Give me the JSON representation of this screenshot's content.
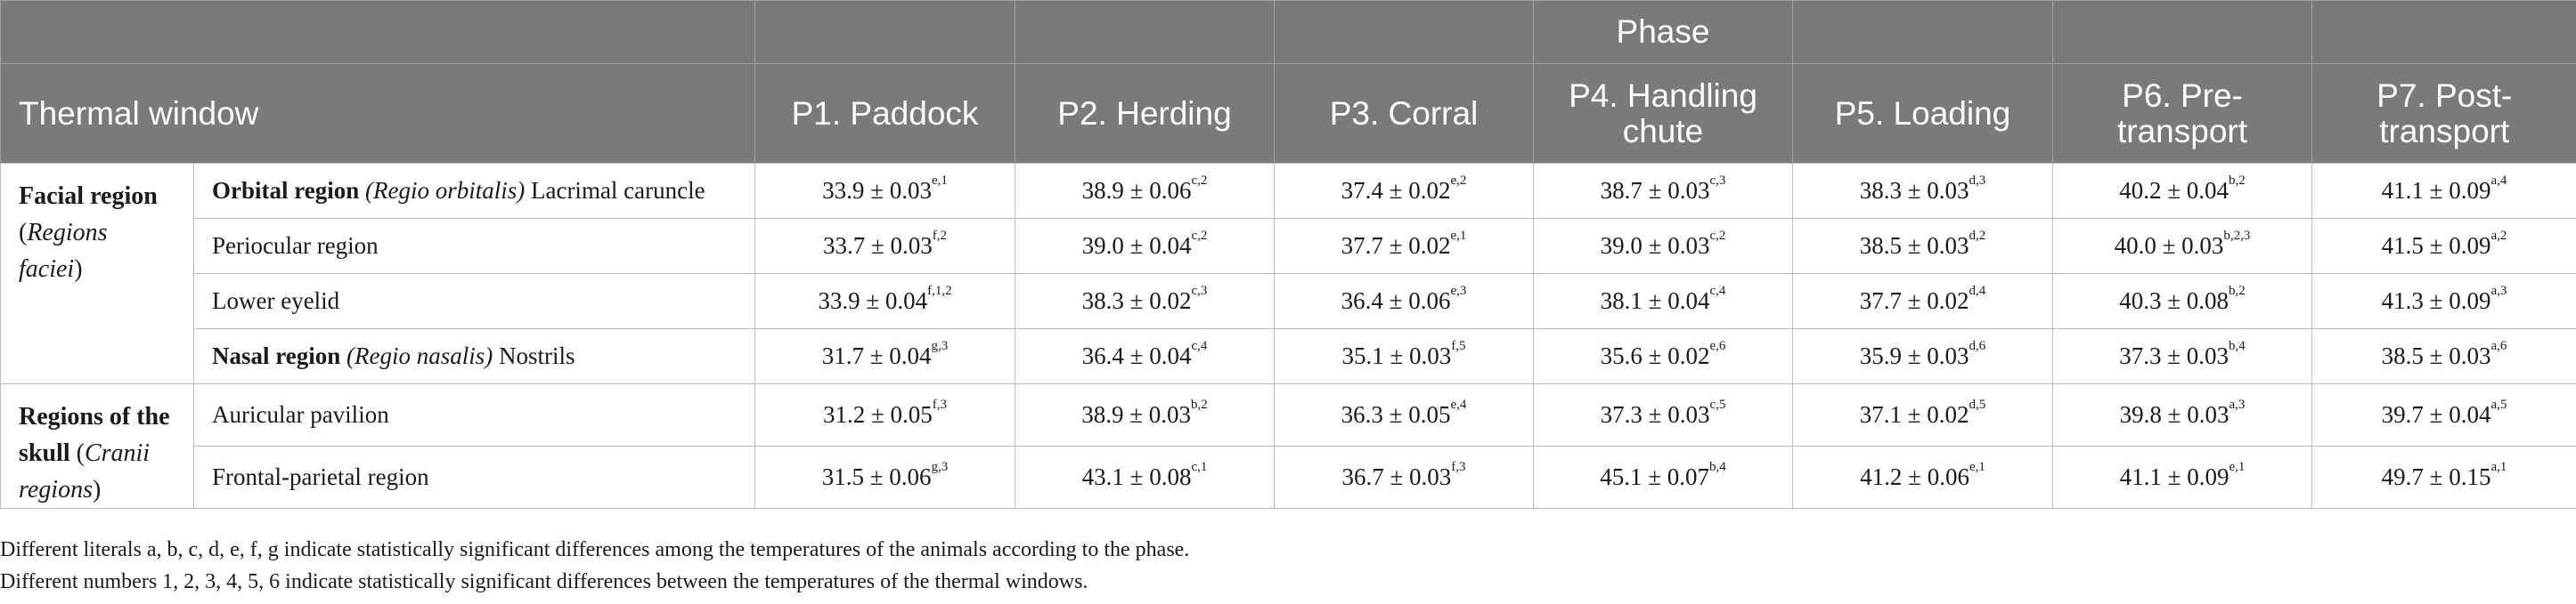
{
  "header": {
    "phase_label": "Phase",
    "thermal_window_label": "Thermal window",
    "phases": [
      "P1. Paddock",
      "P2. Herding",
      "P3. Corral",
      "P4. Handling chute",
      "P5. Loading",
      "P6. Pre-transport",
      "P7. Post-transport"
    ]
  },
  "groups": {
    "facial": {
      "bold": "Facial region",
      "italic": "Regions faciei"
    },
    "skull": {
      "bold": "Regions of the skull",
      "italic": "Cranii regions"
    }
  },
  "rows": [
    {
      "label_bold": "Orbital region",
      "label_italic": "(Regio orbitalis)",
      "label_plain": "Lacrimal caruncle",
      "cells": [
        [
          "33.9 ± 0.03",
          "e,1"
        ],
        [
          "38.9 ± 0.06",
          "c,2"
        ],
        [
          "37.4 ± 0.02",
          "e,2"
        ],
        [
          "38.7 ± 0.03",
          "c,3"
        ],
        [
          "38.3 ± 0.03",
          "d,3"
        ],
        [
          "40.2 ± 0.04",
          "b,2"
        ],
        [
          "41.1 ± 0.09",
          "a,4"
        ]
      ]
    },
    {
      "label_bold": "",
      "label_italic": "",
      "label_plain": "Periocular region",
      "cells": [
        [
          "33.7 ± 0.03",
          "f,2"
        ],
        [
          "39.0 ± 0.04",
          "c,2"
        ],
        [
          "37.7 ± 0.02",
          "e,1"
        ],
        [
          "39.0 ± 0.03",
          "c,2"
        ],
        [
          "38.5 ± 0.03",
          "d,2"
        ],
        [
          "40.0 ± 0.03",
          "b,2,3"
        ],
        [
          "41.5 ± 0.09",
          "a,2"
        ]
      ]
    },
    {
      "label_bold": "",
      "label_italic": "",
      "label_plain": "Lower eyelid",
      "cells": [
        [
          "33.9 ± 0.04",
          "f,1,2"
        ],
        [
          "38.3 ± 0.02",
          "c,3"
        ],
        [
          "36.4 ± 0.06",
          "e,3"
        ],
        [
          "38.1 ± 0.04",
          "c,4"
        ],
        [
          "37.7 ± 0.02",
          "d,4"
        ],
        [
          "40.3 ± 0.08",
          "b,2"
        ],
        [
          "41.3 ± 0.09",
          "a,3"
        ]
      ]
    },
    {
      "label_bold": "Nasal region",
      "label_italic": "(Regio nasalis)",
      "label_plain": "Nostrils",
      "cells": [
        [
          "31.7 ± 0.04",
          "g,3"
        ],
        [
          "36.4 ± 0.04",
          "c,4"
        ],
        [
          "35.1 ± 0.03",
          "f,5"
        ],
        [
          "35.6 ± 0.02",
          "e,6"
        ],
        [
          "35.9 ± 0.03",
          "d,6"
        ],
        [
          "37.3 ± 0.03",
          "b,4"
        ],
        [
          "38.5 ± 0.03",
          "a,6"
        ]
      ]
    },
    {
      "label_bold": "",
      "label_italic": "",
      "label_plain": "Auricular pavilion",
      "cells": [
        [
          "31.2 ± 0.05",
          "f,3"
        ],
        [
          "38.9 ± 0.03",
          "b,2"
        ],
        [
          "36.3 ± 0.05",
          "e,4"
        ],
        [
          "37.3 ± 0.03",
          "c,5"
        ],
        [
          "37.1 ± 0.02",
          "d,5"
        ],
        [
          "39.8 ± 0.03",
          "a,3"
        ],
        [
          "39.7 ± 0.04",
          "a,5"
        ]
      ]
    },
    {
      "label_bold": "",
      "label_italic": "",
      "label_plain": "Frontal-parietal region",
      "cells": [
        [
          "31.5 ± 0.06",
          "g,3"
        ],
        [
          "43.1 ± 0.08",
          "c,1"
        ],
        [
          "36.7 ± 0.03",
          "f,3"
        ],
        [
          "45.1 ± 0.07",
          "b,4"
        ],
        [
          "41.2 ± 0.06",
          "e,1"
        ],
        [
          "41.1 ± 0.09",
          "e,1"
        ],
        [
          "49.7 ± 0.15",
          "a,1"
        ]
      ]
    }
  ],
  "footnotes": [
    "Different literals a, b, c, d, e, f, g indicate statistically significant differences among the temperatures of the animals according to the phase.",
    "Different numbers 1, 2, 3, 4, 5, 6 indicate statistically significant differences between the temperatures of the thermal windows."
  ]
}
